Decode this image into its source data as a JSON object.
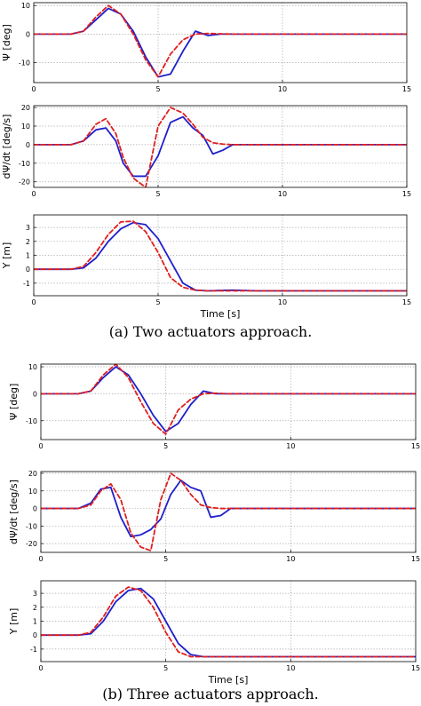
{
  "colors": {
    "series_a": "#1f1fcc",
    "series_b": "#e01f1f"
  },
  "panels": [
    {
      "caption": "(a) Two actuators approach."
    },
    {
      "caption": "(b) Three actuators approach."
    }
  ],
  "chart_data": [
    {
      "type": "line",
      "panel": 0,
      "xlabel": "",
      "ylabel": "Ψ [deg]",
      "xlim": [
        0,
        15
      ],
      "ylim": [
        -17,
        11
      ],
      "xticks": [
        "0",
        "5",
        "10",
        "15"
      ],
      "yticks": [
        -10,
        0,
        10
      ],
      "grid": true,
      "series": [
        {
          "style": "solid-blue",
          "x": [
            0,
            1.5,
            2,
            2.5,
            3,
            3.5,
            4,
            4.5,
            5,
            5.5,
            6,
            6.5,
            7,
            7.5,
            8,
            8.5,
            9,
            10,
            12,
            15
          ],
          "y": [
            0,
            0,
            1,
            5,
            9,
            7,
            1,
            -8,
            -15,
            -14,
            -6,
            1,
            -0.5,
            0,
            0,
            0,
            0,
            0,
            0,
            0
          ]
        },
        {
          "style": "dashed-red",
          "x": [
            0,
            1.5,
            2,
            2.5,
            3,
            3.5,
            4,
            4.5,
            5,
            5.5,
            6,
            6.5,
            7,
            7.5,
            8,
            9,
            10,
            12,
            15
          ],
          "y": [
            0,
            0,
            1,
            6,
            10,
            7,
            0,
            -9,
            -15,
            -7,
            -2,
            0,
            0.2,
            0.1,
            0,
            0,
            0,
            0,
            0
          ]
        }
      ]
    },
    {
      "type": "line",
      "panel": 0,
      "xlabel": "",
      "ylabel": "dΨ/dt [deg/s]",
      "xlim": [
        0,
        15
      ],
      "ylim": [
        -23,
        21
      ],
      "xticks": [
        "0",
        "5",
        "10",
        "15"
      ],
      "yticks": [
        -20,
        -10,
        0,
        10,
        20
      ],
      "grid": true,
      "series": [
        {
          "style": "solid-blue",
          "x": [
            0,
            1.5,
            2,
            2.5,
            2.9,
            3.3,
            3.6,
            4,
            4.5,
            5,
            5.5,
            6,
            6.4,
            6.8,
            7.2,
            7.6,
            8,
            8.5,
            9,
            10,
            15
          ],
          "y": [
            0,
            0,
            2,
            8,
            9,
            2,
            -10,
            -17,
            -17,
            -6,
            12,
            15,
            9,
            5,
            -5,
            -3,
            0,
            0,
            0,
            0,
            0
          ]
        },
        {
          "style": "dashed-red",
          "x": [
            0,
            1.5,
            2,
            2.5,
            2.9,
            3.3,
            3.6,
            4,
            4.5,
            5,
            5.5,
            6,
            6.4,
            6.8,
            7.2,
            7.6,
            8,
            9,
            10,
            15
          ],
          "y": [
            0,
            0,
            2,
            11,
            14,
            6,
            -7,
            -18,
            -23,
            10,
            20,
            17,
            11,
            4,
            1,
            0.3,
            0,
            0,
            0,
            0
          ]
        }
      ]
    },
    {
      "type": "line",
      "panel": 0,
      "xlabel": "Time [s]",
      "ylabel": "Y [m]",
      "xlim": [
        0,
        15
      ],
      "ylim": [
        -1.9,
        3.9
      ],
      "xticks": [
        "0",
        "5",
        "10",
        "15"
      ],
      "yticks": [
        -1,
        0,
        1,
        2,
        3
      ],
      "grid": true,
      "series": [
        {
          "style": "solid-blue",
          "x": [
            0,
            1.5,
            2,
            2.5,
            3,
            3.5,
            4,
            4.5,
            5,
            5.5,
            6,
            6.5,
            7,
            8,
            9,
            10,
            15
          ],
          "y": [
            0,
            0,
            0.1,
            0.8,
            2,
            2.9,
            3.35,
            3.2,
            2.2,
            0.6,
            -1,
            -1.5,
            -1.55,
            -1.5,
            -1.55,
            -1.55,
            -1.55
          ]
        },
        {
          "style": "dashed-red",
          "x": [
            0,
            1.5,
            2,
            2.5,
            3,
            3.5,
            4,
            4.5,
            5,
            5.5,
            6,
            6.5,
            7,
            8,
            9,
            10,
            15
          ],
          "y": [
            0,
            0,
            0.2,
            1.2,
            2.5,
            3.4,
            3.45,
            2.7,
            1.2,
            -0.6,
            -1.3,
            -1.5,
            -1.55,
            -1.55,
            -1.55,
            -1.55,
            -1.55
          ]
        }
      ]
    },
    {
      "type": "line",
      "panel": 1,
      "xlabel": "",
      "ylabel": "Ψ [deg]",
      "xlim": [
        0,
        15
      ],
      "ylim": [
        -17,
        11
      ],
      "xticks": [
        "0",
        "5",
        "10",
        "15"
      ],
      "yticks": [
        -10,
        0,
        10
      ],
      "grid": true,
      "series": [
        {
          "style": "solid-blue",
          "x": [
            0,
            1.5,
            2,
            2.5,
            3,
            3.5,
            4,
            4.5,
            5,
            5.5,
            6,
            6.5,
            7,
            7.5,
            8,
            9,
            10,
            12,
            15
          ],
          "y": [
            0,
            0,
            1,
            6,
            10,
            7,
            0,
            -8,
            -14,
            -11,
            -4,
            1,
            0,
            0,
            0,
            0,
            0,
            0,
            0
          ]
        },
        {
          "style": "dashed-red",
          "x": [
            0,
            1.5,
            2,
            2.5,
            3,
            3.5,
            4,
            4.5,
            5,
            5.5,
            6,
            6.5,
            7,
            7.5,
            8,
            9,
            10,
            12,
            15
          ],
          "y": [
            0,
            0,
            1,
            7,
            11,
            6,
            -3,
            -11,
            -15,
            -6,
            -2,
            0,
            0.2,
            0,
            0,
            0,
            0,
            0,
            0
          ]
        }
      ]
    },
    {
      "type": "line",
      "panel": 1,
      "xlabel": "",
      "ylabel": "dΨ/dt [deg/s]",
      "xlim": [
        0,
        15
      ],
      "ylim": [
        -25,
        21
      ],
      "xticks": [
        "0",
        "5",
        "10",
        "15"
      ],
      "yticks": [
        -20,
        -10,
        0,
        10,
        20
      ],
      "grid": true,
      "series": [
        {
          "style": "solid-blue",
          "x": [
            0,
            1.5,
            2,
            2.4,
            2.8,
            3.2,
            3.6,
            4,
            4.4,
            4.8,
            5.2,
            5.6,
            6,
            6.4,
            6.8,
            7.2,
            7.6,
            8,
            9,
            10,
            15
          ],
          "y": [
            0,
            0,
            3,
            11,
            12,
            -5,
            -16,
            -15,
            -12,
            -6,
            8,
            16,
            12,
            10,
            -5,
            -4,
            0,
            0,
            0,
            0,
            0
          ]
        },
        {
          "style": "dashed-red",
          "x": [
            0,
            1.5,
            2,
            2.4,
            2.8,
            3.2,
            3.6,
            4,
            4.4,
            4.8,
            5.2,
            5.6,
            6,
            6.4,
            6.8,
            7.2,
            8,
            9,
            10,
            15
          ],
          "y": [
            0,
            0,
            2,
            10,
            14,
            5,
            -14,
            -22,
            -24,
            5,
            20,
            16,
            8,
            2,
            0.5,
            0,
            0,
            0,
            0,
            0
          ]
        }
      ]
    },
    {
      "type": "line",
      "panel": 1,
      "xlabel": "Time [s]",
      "ylabel": "Y [m]",
      "xlim": [
        0,
        15
      ],
      "ylim": [
        -1.9,
        3.9
      ],
      "xticks": [
        "0",
        "5",
        "10",
        "15"
      ],
      "yticks": [
        -1,
        0,
        1,
        2,
        3
      ],
      "grid": true,
      "series": [
        {
          "style": "solid-blue",
          "x": [
            0,
            1.5,
            2,
            2.5,
            3,
            3.5,
            4,
            4.5,
            5,
            5.5,
            6,
            6.5,
            7,
            8,
            10,
            15
          ],
          "y": [
            0,
            0,
            0.1,
            1,
            2.4,
            3.2,
            3.35,
            2.6,
            1.0,
            -0.6,
            -1.4,
            -1.55,
            -1.55,
            -1.55,
            -1.55,
            -1.55
          ]
        },
        {
          "style": "dashed-red",
          "x": [
            0,
            1.5,
            2,
            2.5,
            3,
            3.5,
            4,
            4.5,
            5,
            5.5,
            6,
            6.5,
            7,
            8,
            10,
            15
          ],
          "y": [
            0,
            0,
            0.2,
            1.3,
            2.8,
            3.45,
            3.2,
            2,
            0.2,
            -1.2,
            -1.55,
            -1.55,
            -1.55,
            -1.55,
            -1.55,
            -1.55
          ]
        }
      ]
    }
  ]
}
